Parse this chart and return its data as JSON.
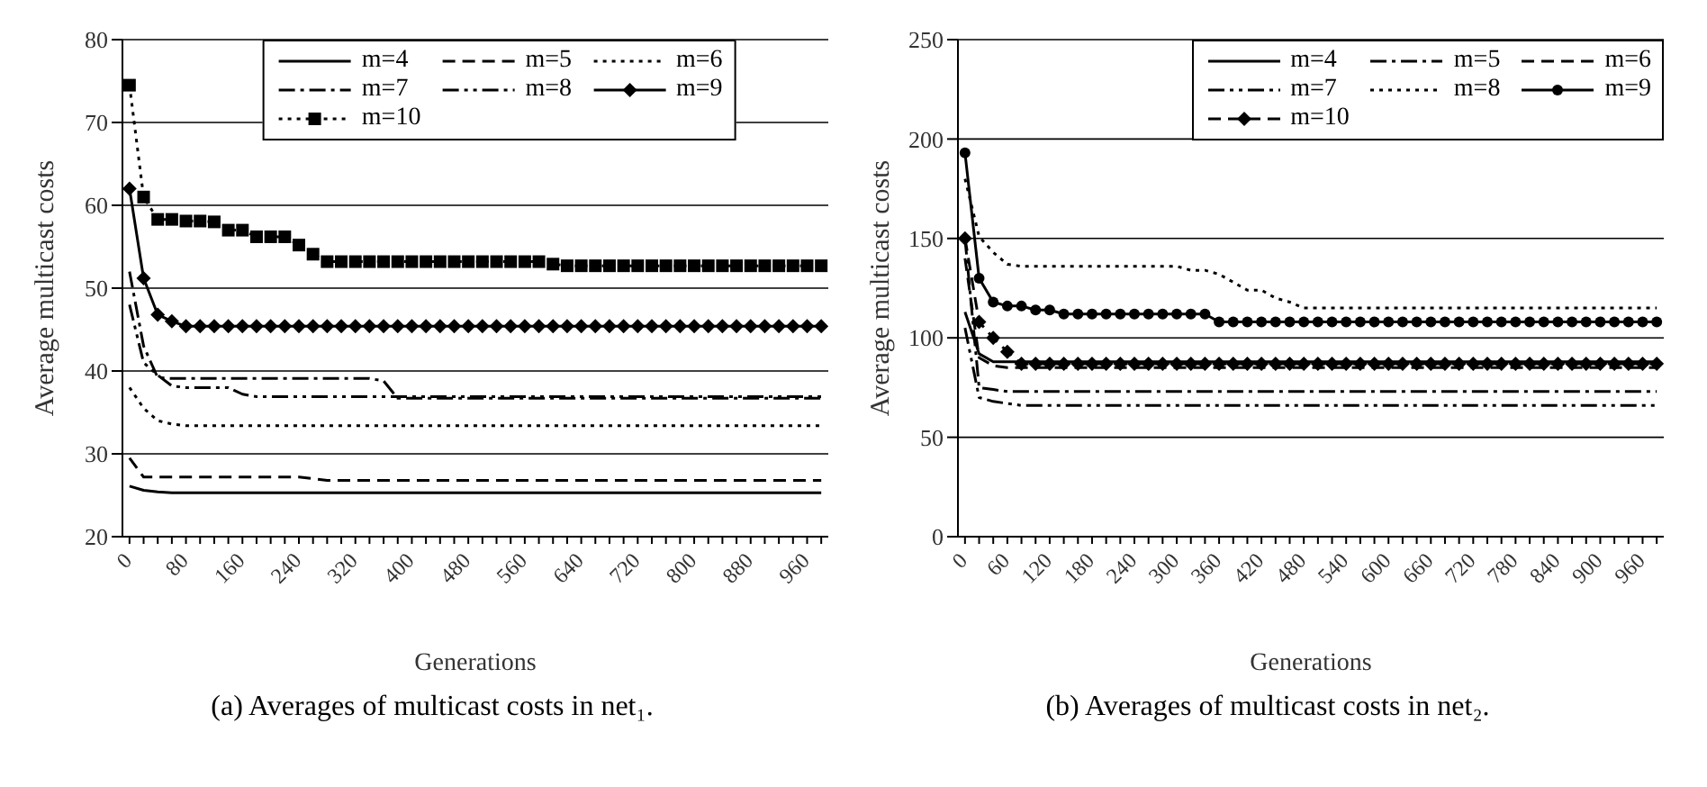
{
  "chart_data": [
    {
      "type": "line",
      "xlabel": "Generations",
      "ylabel": "Average multicast costs",
      "annotations": [
        "(a) Averages of multicast costs in net₁."
      ],
      "x": [
        0,
        20,
        40,
        60,
        80,
        100,
        120,
        140,
        160,
        180,
        200,
        220,
        240,
        260,
        280,
        300,
        320,
        340,
        360,
        380,
        400,
        420,
        440,
        460,
        480,
        500,
        520,
        540,
        560,
        580,
        600,
        620,
        640,
        660,
        680,
        700,
        720,
        740,
        760,
        780,
        800,
        820,
        840,
        860,
        880,
        900,
        920,
        940,
        960,
        980
      ],
      "xlim": [
        -10,
        990
      ],
      "xticks": [
        0,
        {
          "value": 20,
          "label": null
        },
        {
          "value": 40,
          "label": null
        },
        {
          "value": 60,
          "label": null
        },
        80,
        {
          "value": 100,
          "label": null
        },
        {
          "value": 120,
          "label": null
        },
        {
          "value": 140,
          "label": null
        },
        160,
        {
          "value": 180,
          "label": null
        },
        {
          "value": 200,
          "label": null
        },
        {
          "value": 220,
          "label": null
        },
        240,
        {
          "value": 260,
          "label": null
        },
        {
          "value": 280,
          "label": null
        },
        {
          "value": 300,
          "label": null
        },
        320,
        {
          "value": 340,
          "label": null
        },
        {
          "value": 360,
          "label": null
        },
        {
          "value": 380,
          "label": null
        },
        400,
        {
          "value": 420,
          "label": null
        },
        {
          "value": 440,
          "label": null
        },
        {
          "value": 460,
          "label": null
        },
        480,
        {
          "value": 500,
          "label": null
        },
        {
          "value": 520,
          "label": null
        },
        {
          "value": 540,
          "label": null
        },
        560,
        {
          "value": 580,
          "label": null
        },
        {
          "value": 600,
          "label": null
        },
        {
          "value": 620,
          "label": null
        },
        640,
        {
          "value": 660,
          "label": null
        },
        {
          "value": 680,
          "label": null
        },
        {
          "value": 700,
          "label": null
        },
        720,
        {
          "value": 740,
          "label": null
        },
        {
          "value": 760,
          "label": null
        },
        {
          "value": 780,
          "label": null
        },
        800,
        {
          "value": 820,
          "label": null
        },
        {
          "value": 840,
          "label": null
        },
        {
          "value": 860,
          "label": null
        },
        880,
        {
          "value": 900,
          "label": null
        },
        {
          "value": 920,
          "label": null
        },
        {
          "value": 940,
          "label": null
        },
        960,
        {
          "value": 980,
          "label": null
        }
      ],
      "ylim": [
        20,
        80
      ],
      "yticks": [
        20,
        30,
        40,
        50,
        60,
        70,
        80
      ],
      "grid": "y",
      "legend": "top",
      "series": [
        {
          "name": "m=4",
          "color": "#000000",
          "line_style": "solid",
          "marker": "none",
          "values": [
            26.1,
            25.6,
            25.4,
            25.3,
            25.3,
            25.3,
            25.3,
            25.3,
            25.3,
            25.3,
            25.3,
            25.3,
            25.3,
            25.3,
            25.3,
            25.3,
            25.3,
            25.3,
            25.3,
            25.3,
            25.3,
            25.3,
            25.3,
            25.3,
            25.3,
            25.3,
            25.3,
            25.3,
            25.3,
            25.3,
            25.3,
            25.3,
            25.3,
            25.3,
            25.3,
            25.3,
            25.3,
            25.3,
            25.3,
            25.3,
            25.3,
            25.3,
            25.3,
            25.3,
            25.3,
            25.3,
            25.3,
            25.3,
            25.3,
            25.3
          ]
        },
        {
          "name": "m=5",
          "color": "#000000",
          "line_style": "dashed",
          "marker": "none",
          "values": [
            29.5,
            27.2,
            27.2,
            27.2,
            27.2,
            27.2,
            27.2,
            27.2,
            27.2,
            27.2,
            27.2,
            27.2,
            27.2,
            27.0,
            26.8,
            26.8,
            26.8,
            26.8,
            26.8,
            26.8,
            26.8,
            26.8,
            26.8,
            26.8,
            26.8,
            26.8,
            26.8,
            26.8,
            26.8,
            26.8,
            26.8,
            26.8,
            26.8,
            26.8,
            26.8,
            26.8,
            26.8,
            26.8,
            26.8,
            26.8,
            26.8,
            26.8,
            26.8,
            26.8,
            26.8,
            26.8,
            26.8,
            26.8,
            26.8,
            26.8
          ]
        },
        {
          "name": "m=6",
          "color": "#000000",
          "line_style": "dotted",
          "marker": "none",
          "values": [
            38,
            35.5,
            34,
            33.6,
            33.4,
            33.4,
            33.4,
            33.4,
            33.4,
            33.4,
            33.4,
            33.4,
            33.4,
            33.4,
            33.4,
            33.4,
            33.4,
            33.4,
            33.4,
            33.4,
            33.4,
            33.4,
            33.4,
            33.4,
            33.4,
            33.4,
            33.4,
            33.4,
            33.4,
            33.4,
            33.4,
            33.4,
            33.4,
            33.4,
            33.4,
            33.4,
            33.4,
            33.4,
            33.4,
            33.4,
            33.4,
            33.4,
            33.4,
            33.4,
            33.4,
            33.4,
            33.4,
            33.4,
            33.4,
            33.4
          ]
        },
        {
          "name": "m=7",
          "color": "#000000",
          "line_style": "dashdot",
          "marker": "none",
          "values": [
            52,
            43,
            39.2,
            39.1,
            39.1,
            39.1,
            39.1,
            39.1,
            39.1,
            39.1,
            39.1,
            39.1,
            39.1,
            39.1,
            39.1,
            39.1,
            39.1,
            39.1,
            38.8,
            36.7,
            36.7,
            36.7,
            36.7,
            36.7,
            36.7,
            36.7,
            36.7,
            36.7,
            36.7,
            36.7,
            36.7,
            36.7,
            36.7,
            36.7,
            36.7,
            36.7,
            36.7,
            36.7,
            36.7,
            36.7,
            36.7,
            36.7,
            36.7,
            36.7,
            36.7,
            36.7,
            36.7,
            36.7,
            36.7,
            36.7
          ]
        },
        {
          "name": "m=8",
          "color": "#000000",
          "line_style": "dashdotdot",
          "marker": "none",
          "values": [
            48,
            41,
            39.5,
            38.2,
            38.0,
            38.0,
            38.0,
            38.0,
            37.2,
            36.9,
            36.9,
            36.9,
            36.9,
            36.9,
            36.9,
            36.9,
            36.9,
            36.9,
            36.9,
            36.9,
            36.9,
            36.9,
            36.9,
            36.9,
            36.9,
            36.9,
            36.9,
            36.9,
            36.9,
            36.9,
            36.9,
            36.9,
            36.9,
            36.9,
            36.9,
            36.9,
            36.9,
            36.9,
            36.9,
            36.9,
            36.9,
            36.9,
            36.9,
            36.9,
            36.9,
            36.9,
            36.9,
            36.9,
            36.9,
            36.9
          ]
        },
        {
          "name": "m=9",
          "color": "#000000",
          "line_style": "solid",
          "marker": "diamond",
          "values": [
            62,
            51.2,
            46.8,
            46,
            45.4,
            45.4,
            45.4,
            45.4,
            45.4,
            45.4,
            45.4,
            45.4,
            45.4,
            45.4,
            45.4,
            45.4,
            45.4,
            45.4,
            45.4,
            45.4,
            45.4,
            45.4,
            45.4,
            45.4,
            45.4,
            45.4,
            45.4,
            45.4,
            45.4,
            45.4,
            45.4,
            45.4,
            45.4,
            45.4,
            45.4,
            45.4,
            45.4,
            45.4,
            45.4,
            45.4,
            45.4,
            45.4,
            45.4,
            45.4,
            45.4,
            45.4,
            45.4,
            45.4,
            45.4,
            45.4
          ]
        },
        {
          "name": "m=10",
          "color": "#000000",
          "line_style": "dotted",
          "marker": "square",
          "values": [
            74.5,
            61,
            58.3,
            58.3,
            58.1,
            58.1,
            58.0,
            57.0,
            57.0,
            56.2,
            56.2,
            56.2,
            55.2,
            54.1,
            53.2,
            53.2,
            53.2,
            53.2,
            53.2,
            53.2,
            53.2,
            53.2,
            53.2,
            53.2,
            53.2,
            53.2,
            53.2,
            53.2,
            53.2,
            53.2,
            52.9,
            52.7,
            52.7,
            52.7,
            52.7,
            52.7,
            52.7,
            52.7,
            52.7,
            52.7,
            52.7,
            52.7,
            52.7,
            52.7,
            52.7,
            52.7,
            52.7,
            52.7,
            52.7,
            52.7
          ]
        }
      ]
    },
    {
      "type": "line",
      "xlabel": "Generations",
      "ylabel": "Average multicast costs",
      "annotations": [
        "(b) Averages of multicast costs in net₂."
      ],
      "x": [
        0,
        20,
        40,
        60,
        80,
        100,
        120,
        140,
        160,
        180,
        200,
        220,
        240,
        260,
        280,
        300,
        320,
        340,
        360,
        380,
        400,
        420,
        440,
        460,
        480,
        500,
        520,
        540,
        560,
        580,
        600,
        620,
        640,
        660,
        680,
        700,
        720,
        740,
        760,
        780,
        800,
        820,
        840,
        860,
        880,
        900,
        920,
        940,
        960,
        980
      ],
      "xlim": [
        -10,
        990
      ],
      "xticks": [
        0,
        {
          "value": 20,
          "label": null
        },
        {
          "value": 40,
          "label": null
        },
        60,
        {
          "value": 80,
          "label": null
        },
        {
          "value": 100,
          "label": null
        },
        120,
        {
          "value": 140,
          "label": null
        },
        {
          "value": 160,
          "label": null
        },
        180,
        {
          "value": 200,
          "label": null
        },
        {
          "value": 220,
          "label": null
        },
        240,
        {
          "value": 260,
          "label": null
        },
        {
          "value": 280,
          "label": null
        },
        300,
        {
          "value": 320,
          "label": null
        },
        {
          "value": 340,
          "label": null
        },
        360,
        {
          "value": 380,
          "label": null
        },
        {
          "value": 400,
          "label": null
        },
        420,
        {
          "value": 440,
          "label": null
        },
        {
          "value": 460,
          "label": null
        },
        480,
        {
          "value": 500,
          "label": null
        },
        {
          "value": 520,
          "label": null
        },
        540,
        {
          "value": 560,
          "label": null
        },
        {
          "value": 580,
          "label": null
        },
        600,
        {
          "value": 620,
          "label": null
        },
        {
          "value": 640,
          "label": null
        },
        660,
        {
          "value": 680,
          "label": null
        },
        {
          "value": 700,
          "label": null
        },
        720,
        {
          "value": 740,
          "label": null
        },
        {
          "value": 760,
          "label": null
        },
        780,
        {
          "value": 800,
          "label": null
        },
        {
          "value": 820,
          "label": null
        },
        840,
        {
          "value": 860,
          "label": null
        },
        {
          "value": 880,
          "label": null
        },
        900,
        {
          "value": 920,
          "label": null
        },
        {
          "value": 940,
          "label": null
        },
        960,
        {
          "value": 980,
          "label": null
        }
      ],
      "ylim": [
        0,
        250
      ],
      "yticks": [
        0,
        50,
        100,
        150,
        200,
        250
      ],
      "grid": "y",
      "legend": "top right",
      "series": [
        {
          "name": "m=4",
          "color": "#000000",
          "line_style": "solid",
          "marker": "none",
          "values": [
            113,
            92,
            88,
            88,
            88,
            88,
            88,
            88,
            88,
            88,
            88,
            88,
            88,
            88,
            88,
            88,
            88,
            88,
            88,
            88,
            88,
            88,
            88,
            88,
            88,
            88,
            88,
            88,
            88,
            88,
            88,
            88,
            88,
            88,
            88,
            88,
            88,
            88,
            88,
            88,
            88,
            88,
            88,
            88,
            88,
            88,
            88,
            88,
            88,
            88
          ]
        },
        {
          "name": "m=5",
          "color": "#000000",
          "line_style": "dashdot",
          "marker": "none",
          "values": [
            150,
            75,
            74,
            73,
            73,
            73,
            73,
            73,
            73,
            73,
            73,
            73,
            73,
            73,
            73,
            73,
            73,
            73,
            73,
            73,
            73,
            73,
            73,
            73,
            73,
            73,
            73,
            73,
            73,
            73,
            73,
            73,
            73,
            73,
            73,
            73,
            73,
            73,
            73,
            73,
            73,
            73,
            73,
            73,
            73,
            73,
            73,
            73,
            73,
            73
          ]
        },
        {
          "name": "m=6",
          "color": "#000000",
          "line_style": "dashed",
          "marker": "none",
          "values": [
            140,
            90,
            86,
            85,
            85,
            85,
            85,
            85,
            85,
            85,
            85,
            85,
            85,
            85,
            85,
            85,
            85,
            85,
            85,
            85,
            85,
            85,
            85,
            85,
            85,
            85,
            85,
            85,
            85,
            85,
            85,
            85,
            85,
            85,
            85,
            85,
            85,
            85,
            85,
            85,
            85,
            85,
            85,
            85,
            85,
            85,
            85,
            85,
            85,
            85
          ]
        },
        {
          "name": "m=7",
          "color": "#000000",
          "line_style": "dashdotdot",
          "marker": "none",
          "values": [
            105,
            70,
            68,
            67,
            66,
            66,
            66,
            66,
            66,
            66,
            66,
            66,
            66,
            66,
            66,
            66,
            66,
            66,
            66,
            66,
            66,
            66,
            66,
            66,
            66,
            66,
            66,
            66,
            66,
            66,
            66,
            66,
            66,
            66,
            66,
            66,
            66,
            66,
            66,
            66,
            66,
            66,
            66,
            66,
            66,
            66,
            66,
            66,
            66,
            66
          ]
        },
        {
          "name": "m=8",
          "color": "#000000",
          "line_style": "dotted",
          "marker": "none",
          "values": [
            180,
            151,
            143,
            137,
            136,
            136,
            136,
            136,
            136,
            136,
            136,
            136,
            136,
            136,
            136,
            136,
            134,
            134,
            132,
            128,
            124,
            124,
            120,
            118,
            115,
            115,
            115,
            115,
            115,
            115,
            115,
            115,
            115,
            115,
            115,
            115,
            115,
            115,
            115,
            115,
            115,
            115,
            115,
            115,
            115,
            115,
            115,
            115,
            115,
            115
          ]
        },
        {
          "name": "m=9",
          "color": "#000000",
          "line_style": "solid",
          "marker": "circle",
          "values": [
            193,
            130,
            118,
            116,
            116,
            114,
            114,
            112,
            112,
            112,
            112,
            112,
            112,
            112,
            112,
            112,
            112,
            112,
            108,
            108,
            108,
            108,
            108,
            108,
            108,
            108,
            108,
            108,
            108,
            108,
            108,
            108,
            108,
            108,
            108,
            108,
            108,
            108,
            108,
            108,
            108,
            108,
            108,
            108,
            108,
            108,
            108,
            108,
            108,
            108
          ]
        },
        {
          "name": "m=10",
          "color": "#000000",
          "line_style": "dashed",
          "marker": "diamond",
          "values": [
            150,
            108,
            100,
            93,
            87,
            87,
            87,
            87,
            87,
            87,
            87,
            87,
            87,
            87,
            87,
            87,
            87,
            87,
            87,
            87,
            87,
            87,
            87,
            87,
            87,
            87,
            87,
            87,
            87,
            87,
            87,
            87,
            87,
            87,
            87,
            87,
            87,
            87,
            87,
            87,
            87,
            87,
            87,
            87,
            87,
            87,
            87,
            87,
            87,
            87
          ]
        }
      ]
    }
  ]
}
